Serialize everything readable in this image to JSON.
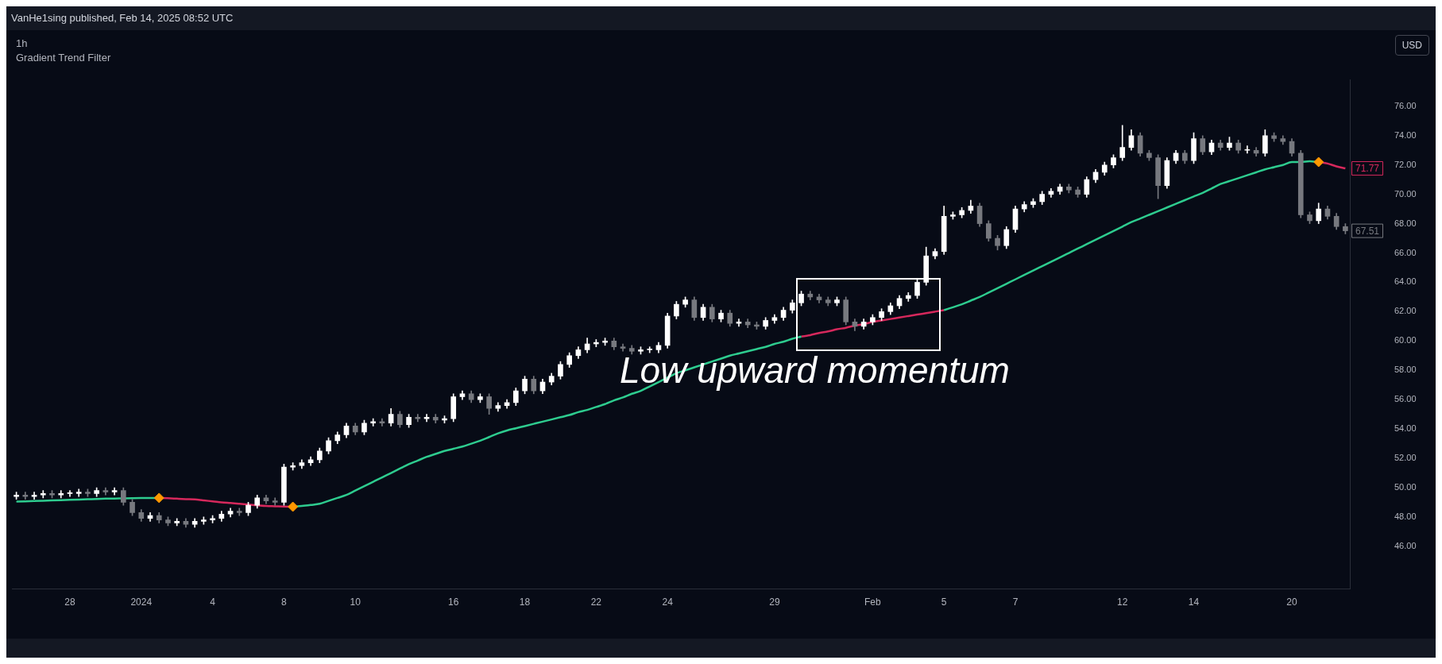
{
  "chart_data": {
    "type": "candlestick",
    "title": "VanHe1sing published, Feb 14, 2025 08:52 UTC",
    "subtitle": "1h",
    "ylabel": "USD",
    "legend": false,
    "grid": false,
    "annotations": [
      "Low upward momentum"
    ],
    "categories": [
      null,
      null,
      null,
      null,
      null,
      null,
      "28",
      null,
      null,
      null,
      null,
      null,
      null,
      null,
      "2024",
      null,
      null,
      null,
      null,
      null,
      null,
      null,
      "4",
      null,
      null,
      null,
      null,
      null,
      null,
      null,
      "8",
      null,
      null,
      null,
      null,
      null,
      null,
      null,
      "10",
      null,
      null,
      null,
      null,
      null,
      null,
      null,
      null,
      null,
      null,
      "16",
      null,
      null,
      null,
      null,
      null,
      null,
      null,
      "18",
      null,
      null,
      null,
      null,
      null,
      null,
      null,
      "22",
      null,
      null,
      null,
      null,
      null,
      null,
      null,
      "24",
      null,
      null,
      null,
      null,
      null,
      null,
      null,
      null,
      null,
      null,
      null,
      "29",
      null,
      null,
      null,
      null,
      null,
      null,
      null,
      null,
      null,
      null,
      "Feb",
      null,
      null,
      null,
      null,
      null,
      null,
      null,
      "5",
      null,
      null,
      null,
      null,
      null,
      null,
      null,
      "7",
      null,
      null,
      null,
      null,
      null,
      null,
      null,
      null,
      null,
      null,
      null,
      "12",
      null,
      null,
      null,
      null,
      null,
      null,
      null,
      "14",
      null,
      null,
      null,
      null,
      null,
      null,
      null,
      null,
      null,
      null,
      "20",
      null,
      null,
      null,
      null,
      null,
      null
    ],
    "ylim": [
      43.1,
      77.8
    ],
    "yticks": [
      {
        "value": 46,
        "label": "46.00"
      },
      {
        "value": 48,
        "label": "48.00"
      },
      {
        "value": 50,
        "label": "50.00"
      },
      {
        "value": 52,
        "label": "52.00"
      },
      {
        "value": 54,
        "label": "54.00"
      },
      {
        "value": 56,
        "label": "56.00"
      },
      {
        "value": 58,
        "label": "58.00"
      },
      {
        "value": 60,
        "label": "60.00"
      },
      {
        "value": 62,
        "label": "62.00"
      },
      {
        "value": 64,
        "label": "64.00"
      },
      {
        "value": 66,
        "label": "66.00"
      },
      {
        "value": 68,
        "label": "68.00"
      },
      {
        "value": 70,
        "label": "70.00"
      },
      {
        "value": 72,
        "label": "72.00"
      },
      {
        "value": 74,
        "label": "74.00"
      },
      {
        "value": 76,
        "label": "76.00"
      }
    ],
    "series": [
      {
        "type": "candlestick",
        "colors": [
          "#ffffff",
          "#77797f",
          "#ffffff",
          "#ffffff",
          "#77797f",
          "#ffffff",
          "#ffffff",
          "#ffffff",
          "#77797f",
          "#ffffff",
          "#77797f",
          "#ffffff",
          "#77797f",
          "#77797f",
          "#77797f",
          "#ffffff",
          "#77797f",
          "#77797f",
          "#ffffff",
          "#77797f",
          "#ffffff",
          "#ffffff",
          "#ffffff",
          "#ffffff",
          "#ffffff",
          "#77797f",
          "#ffffff",
          "#ffffff",
          "#77797f",
          "#77797f",
          "#ffffff",
          "#ffffff",
          "#ffffff",
          "#ffffff",
          "#ffffff",
          "#ffffff",
          "#ffffff",
          "#ffffff",
          "#77797f",
          "#ffffff",
          "#ffffff",
          "#77797f",
          "#ffffff",
          "#77797f",
          "#ffffff",
          "#77797f",
          "#ffffff",
          "#77797f",
          "#ffffff",
          "#ffffff",
          "#ffffff",
          "#77797f",
          "#ffffff",
          "#77797f",
          "#ffffff",
          "#ffffff",
          "#ffffff",
          "#ffffff",
          "#77797f",
          "#ffffff",
          "#ffffff",
          "#ffffff",
          "#ffffff",
          "#ffffff",
          "#ffffff",
          "#ffffff",
          "#ffffff",
          "#77797f",
          "#77797f",
          "#77797f",
          "#ffffff",
          "#ffffff",
          "#ffffff",
          "#ffffff",
          "#ffffff",
          "#ffffff",
          "#77797f",
          "#ffffff",
          "#77797f",
          "#ffffff",
          "#77797f",
          "#ffffff",
          "#77797f",
          "#77797f",
          "#ffffff",
          "#ffffff",
          "#ffffff",
          "#ffffff",
          "#ffffff",
          "#77797f",
          "#77797f",
          "#77797f",
          "#ffffff",
          "#77797f",
          "#77797f",
          "#ffffff",
          "#ffffff",
          "#ffffff",
          "#ffffff",
          "#ffffff",
          "#ffffff",
          "#ffffff",
          "#ffffff",
          "#ffffff",
          "#ffffff",
          "#ffffff",
          "#ffffff",
          "#ffffff",
          "#77797f",
          "#77797f",
          "#77797f",
          "#ffffff",
          "#ffffff",
          "#ffffff",
          "#ffffff",
          "#ffffff",
          "#ffffff",
          "#ffffff",
          "#77797f",
          "#77797f",
          "#ffffff",
          "#ffffff",
          "#ffffff",
          "#ffffff",
          "#ffffff",
          "#ffffff",
          "#77797f",
          "#77797f",
          "#77797f",
          "#ffffff",
          "#ffffff",
          "#77797f",
          "#ffffff",
          "#77797f",
          "#ffffff",
          "#77797f",
          "#ffffff",
          "#77797f",
          "#ffffff",
          "#77797f",
          "#ffffff",
          "#77797f",
          "#77797f",
          "#77797f",
          "#77797f",
          "#77797f",
          "#ffffff",
          "#77797f",
          "#77797f",
          "#77797f"
        ],
        "value_labels": [
          null,
          null,
          null,
          null,
          null,
          null,
          null,
          null,
          null,
          null,
          null,
          null,
          null,
          null,
          null,
          null,
          null,
          null,
          null,
          null,
          null,
          null,
          null,
          null,
          null,
          null,
          null,
          null,
          null,
          null,
          null,
          null,
          null,
          null,
          null,
          null,
          null,
          null,
          null,
          null,
          null,
          null,
          null,
          null,
          null,
          null,
          null,
          null,
          null,
          null,
          null,
          null,
          null,
          null,
          null,
          null,
          null,
          null,
          null,
          null,
          null,
          null,
          null,
          null,
          null,
          null,
          null,
          null,
          null,
          null,
          null,
          null,
          null,
          null,
          null,
          null,
          null,
          null,
          null,
          null,
          null,
          null,
          null,
          null,
          null,
          null,
          null,
          null,
          null,
          null,
          null,
          null,
          null,
          null,
          null,
          null,
          null,
          null,
          null,
          null,
          null,
          null,
          null,
          null,
          null,
          null,
          null,
          null,
          null,
          null,
          null,
          null,
          null,
          null,
          null,
          null,
          null,
          null,
          null,
          null,
          null,
          null,
          null,
          null,
          null,
          null,
          null,
          null,
          null,
          null,
          null,
          null,
          null,
          null,
          null,
          null,
          null,
          null,
          null,
          null,
          null,
          null,
          null,
          null,
          null,
          null,
          null,
          null,
          null,
          "67.51"
        ],
        "ohlc": [
          [
            49.4,
            49.7,
            49.2,
            49.5
          ],
          [
            49.5,
            49.7,
            49.2,
            49.4
          ],
          [
            49.4,
            49.7,
            49.2,
            49.5
          ],
          [
            49.5,
            49.8,
            49.3,
            49.6
          ],
          [
            49.6,
            49.8,
            49.3,
            49.5
          ],
          [
            49.5,
            49.8,
            49.3,
            49.6
          ],
          [
            49.6,
            49.8,
            49.4,
            49.6
          ],
          [
            49.6,
            49.9,
            49.4,
            49.7
          ],
          [
            49.7,
            49.9,
            49.4,
            49.6
          ],
          [
            49.6,
            50.0,
            49.4,
            49.8
          ],
          [
            49.8,
            50.0,
            49.5,
            49.7
          ],
          [
            49.7,
            50.0,
            49.5,
            49.8
          ],
          [
            49.8,
            50.0,
            48.8,
            49.0
          ],
          [
            49.0,
            49.2,
            48.1,
            48.3
          ],
          [
            48.3,
            48.5,
            47.7,
            47.9
          ],
          [
            47.9,
            48.3,
            47.7,
            48.1
          ],
          [
            48.1,
            48.3,
            47.6,
            47.8
          ],
          [
            47.8,
            48.0,
            47.4,
            47.6
          ],
          [
            47.6,
            47.9,
            47.4,
            47.7
          ],
          [
            47.7,
            47.9,
            47.3,
            47.5
          ],
          [
            47.5,
            47.9,
            47.3,
            47.7
          ],
          [
            47.7,
            48.0,
            47.5,
            47.8
          ],
          [
            47.8,
            48.1,
            47.6,
            47.9
          ],
          [
            47.9,
            48.4,
            47.7,
            48.2
          ],
          [
            48.2,
            48.6,
            48.0,
            48.4
          ],
          [
            48.4,
            48.6,
            48.1,
            48.3
          ],
          [
            48.3,
            49.0,
            48.1,
            48.8
          ],
          [
            48.8,
            49.5,
            48.6,
            49.3
          ],
          [
            49.3,
            49.5,
            48.9,
            49.1
          ],
          [
            49.1,
            49.3,
            48.8,
            49.0
          ],
          [
            49.0,
            51.6,
            48.8,
            51.4
          ],
          [
            51.4,
            51.7,
            51.2,
            51.5
          ],
          [
            51.5,
            51.9,
            51.3,
            51.7
          ],
          [
            51.7,
            52.1,
            51.5,
            51.9
          ],
          [
            51.9,
            52.7,
            51.7,
            52.5
          ],
          [
            52.5,
            53.4,
            52.3,
            53.2
          ],
          [
            53.2,
            53.8,
            53.0,
            53.6
          ],
          [
            53.6,
            54.4,
            53.4,
            54.2
          ],
          [
            54.2,
            54.4,
            53.6,
            53.8
          ],
          [
            53.8,
            54.6,
            53.6,
            54.4
          ],
          [
            54.4,
            54.7,
            54.2,
            54.5
          ],
          [
            54.5,
            54.7,
            54.2,
            54.4
          ],
          [
            54.4,
            55.4,
            54.2,
            55.0
          ],
          [
            55.0,
            55.2,
            54.1,
            54.3
          ],
          [
            54.3,
            55.0,
            54.1,
            54.8
          ],
          [
            54.8,
            55.0,
            54.5,
            54.7
          ],
          [
            54.7,
            55.0,
            54.5,
            54.8
          ],
          [
            54.8,
            55.0,
            54.4,
            54.6
          ],
          [
            54.6,
            54.9,
            54.4,
            54.7
          ],
          [
            54.7,
            56.4,
            54.5,
            56.2
          ],
          [
            56.2,
            56.6,
            56.0,
            56.4
          ],
          [
            56.4,
            56.6,
            55.8,
            56.0
          ],
          [
            56.0,
            56.4,
            55.8,
            56.2
          ],
          [
            56.2,
            56.4,
            55.0,
            55.4
          ],
          [
            55.4,
            55.8,
            55.2,
            55.6
          ],
          [
            55.6,
            56.0,
            55.4,
            55.8
          ],
          [
            55.8,
            56.8,
            55.6,
            56.6
          ],
          [
            56.6,
            57.6,
            56.4,
            57.4
          ],
          [
            57.4,
            57.6,
            56.4,
            56.6
          ],
          [
            56.6,
            57.4,
            56.4,
            57.2
          ],
          [
            57.2,
            57.8,
            57.0,
            57.6
          ],
          [
            57.6,
            58.6,
            57.4,
            58.4
          ],
          [
            58.4,
            59.2,
            58.2,
            59.0
          ],
          [
            59.0,
            59.6,
            58.8,
            59.4
          ],
          [
            59.4,
            60.2,
            59.2,
            59.8
          ],
          [
            59.8,
            60.1,
            59.6,
            59.9
          ],
          [
            59.9,
            60.2,
            59.7,
            60.0
          ],
          [
            60.0,
            60.2,
            59.4,
            59.6
          ],
          [
            59.6,
            59.8,
            59.3,
            59.5
          ],
          [
            59.5,
            59.7,
            59.1,
            59.3
          ],
          [
            59.3,
            59.6,
            59.1,
            59.4
          ],
          [
            59.4,
            59.6,
            59.2,
            59.4
          ],
          [
            59.4,
            59.9,
            59.2,
            59.7
          ],
          [
            59.7,
            61.9,
            59.5,
            61.7
          ],
          [
            61.7,
            62.7,
            61.5,
            62.5
          ],
          [
            62.5,
            63.0,
            62.3,
            62.8
          ],
          [
            62.8,
            63.0,
            61.4,
            61.6
          ],
          [
            61.6,
            62.5,
            61.4,
            62.3
          ],
          [
            62.3,
            62.5,
            61.3,
            61.5
          ],
          [
            61.5,
            62.1,
            61.3,
            61.9
          ],
          [
            61.9,
            62.1,
            61.0,
            61.2
          ],
          [
            61.2,
            61.5,
            61.0,
            61.3
          ],
          [
            61.3,
            61.5,
            60.9,
            61.1
          ],
          [
            61.1,
            61.3,
            60.8,
            61.0
          ],
          [
            61.0,
            61.6,
            60.8,
            61.4
          ],
          [
            61.4,
            61.8,
            61.2,
            61.6
          ],
          [
            61.6,
            62.3,
            61.4,
            62.1
          ],
          [
            62.1,
            62.8,
            61.9,
            62.6
          ],
          [
            62.6,
            63.4,
            62.4,
            63.2
          ],
          [
            63.2,
            63.4,
            62.8,
            63.0
          ],
          [
            63.0,
            63.2,
            62.6,
            62.8
          ],
          [
            62.8,
            63.0,
            62.4,
            62.6
          ],
          [
            62.6,
            63.0,
            62.4,
            62.8
          ],
          [
            62.8,
            63.0,
            61.1,
            61.3
          ],
          [
            61.3,
            61.5,
            60.7,
            61.0
          ],
          [
            61.0,
            61.5,
            60.8,
            61.3
          ],
          [
            61.3,
            61.8,
            61.1,
            61.6
          ],
          [
            61.6,
            62.2,
            61.4,
            62.0
          ],
          [
            62.0,
            62.6,
            61.8,
            62.4
          ],
          [
            62.4,
            63.1,
            62.2,
            62.9
          ],
          [
            62.9,
            63.3,
            62.7,
            63.1
          ],
          [
            63.1,
            64.2,
            62.9,
            64.0
          ],
          [
            64.0,
            66.4,
            63.8,
            65.8
          ],
          [
            65.8,
            66.3,
            65.6,
            66.1
          ],
          [
            66.1,
            69.2,
            65.9,
            68.5
          ],
          [
            68.5,
            68.8,
            68.3,
            68.6
          ],
          [
            68.6,
            69.1,
            68.4,
            68.9
          ],
          [
            68.9,
            69.6,
            68.7,
            69.2
          ],
          [
            69.2,
            69.4,
            67.8,
            68.0
          ],
          [
            68.0,
            68.2,
            66.8,
            67.0
          ],
          [
            67.0,
            67.2,
            66.2,
            66.5
          ],
          [
            66.5,
            67.8,
            66.3,
            67.6
          ],
          [
            67.6,
            69.2,
            67.4,
            69.0
          ],
          [
            69.0,
            69.5,
            68.8,
            69.3
          ],
          [
            69.3,
            69.7,
            69.1,
            69.5
          ],
          [
            69.5,
            70.2,
            69.3,
            70.0
          ],
          [
            70.0,
            70.4,
            69.8,
            70.2
          ],
          [
            70.2,
            70.7,
            70.0,
            70.5
          ],
          [
            70.5,
            70.7,
            70.1,
            70.3
          ],
          [
            70.3,
            70.5,
            69.8,
            70.0
          ],
          [
            70.0,
            71.2,
            69.8,
            71.0
          ],
          [
            71.0,
            71.7,
            70.8,
            71.5
          ],
          [
            71.5,
            72.2,
            71.3,
            72.0
          ],
          [
            72.0,
            72.7,
            71.8,
            72.5
          ],
          [
            72.5,
            74.7,
            72.3,
            73.2
          ],
          [
            73.2,
            74.4,
            73.0,
            74.0
          ],
          [
            74.0,
            74.2,
            72.6,
            72.8
          ],
          [
            72.8,
            73.0,
            72.3,
            72.5
          ],
          [
            72.5,
            72.7,
            69.7,
            70.6
          ],
          [
            70.6,
            72.5,
            70.4,
            72.3
          ],
          [
            72.3,
            73.0,
            72.1,
            72.8
          ],
          [
            72.8,
            73.0,
            72.1,
            72.3
          ],
          [
            72.3,
            74.2,
            72.1,
            73.8
          ],
          [
            73.8,
            74.0,
            72.7,
            72.9
          ],
          [
            72.9,
            73.7,
            72.7,
            73.5
          ],
          [
            73.5,
            73.7,
            73.0,
            73.2
          ],
          [
            73.2,
            73.9,
            73.0,
            73.5
          ],
          [
            73.5,
            73.7,
            72.8,
            73.0
          ],
          [
            73.0,
            73.3,
            72.8,
            73.0
          ],
          [
            73.0,
            73.2,
            72.6,
            72.8
          ],
          [
            72.8,
            74.4,
            72.6,
            74.0
          ],
          [
            74.0,
            74.2,
            73.6,
            73.8
          ],
          [
            73.8,
            74.0,
            73.4,
            73.6
          ],
          [
            73.6,
            73.8,
            72.6,
            72.8
          ],
          [
            72.8,
            73.0,
            68.4,
            68.6
          ],
          [
            68.6,
            68.8,
            68.0,
            68.2
          ],
          [
            68.2,
            69.4,
            68.0,
            69.0
          ],
          [
            69.0,
            69.2,
            68.3,
            68.5
          ],
          [
            68.5,
            68.7,
            67.6,
            67.8
          ],
          [
            67.8,
            68.0,
            67.3,
            67.51
          ]
        ]
      },
      {
        "type": "line",
        "name": "Gradient Trend Filter",
        "color": "#2ecc8f",
        "line_style": "solid",
        "marker": "none",
        "values": [
          49.05,
          49.07,
          49.09,
          49.11,
          49.13,
          49.15,
          49.17,
          49.19,
          49.21,
          49.23,
          49.25,
          49.26,
          49.27,
          49.28,
          49.29,
          49.3,
          49.3,
          null,
          null,
          null,
          null,
          null,
          null,
          null,
          null,
          null,
          null,
          null,
          null,
          null,
          null,
          48.7,
          48.75,
          48.82,
          48.9,
          49.1,
          49.3,
          49.5,
          49.8,
          50.1,
          50.4,
          50.7,
          51.0,
          51.3,
          51.6,
          51.85,
          52.1,
          52.3,
          52.5,
          52.65,
          52.8,
          53.0,
          53.2,
          53.45,
          53.7,
          53.9,
          54.05,
          54.2,
          54.35,
          54.5,
          54.65,
          54.8,
          54.95,
          55.15,
          55.3,
          55.5,
          55.7,
          55.95,
          56.15,
          56.4,
          56.6,
          56.9,
          57.2,
          57.5,
          57.8,
          58.0,
          58.2,
          58.4,
          58.6,
          58.8,
          59.0,
          59.15,
          59.3,
          59.45,
          59.6,
          59.8,
          59.95,
          60.15,
          60.3,
          null,
          null,
          null,
          null,
          null,
          null,
          null,
          null,
          null,
          null,
          null,
          null,
          null,
          null,
          null,
          62.1,
          62.3,
          62.5,
          62.75,
          63.0,
          63.3,
          63.6,
          63.9,
          64.2,
          64.5,
          64.8,
          65.1,
          65.4,
          65.7,
          66.0,
          66.3,
          66.6,
          66.9,
          67.2,
          67.5,
          67.8,
          68.1,
          68.35,
          68.6,
          68.85,
          69.1,
          69.35,
          69.6,
          69.85,
          70.1,
          70.4,
          70.7,
          70.9,
          71.1,
          71.3,
          71.5,
          71.7,
          71.85,
          72.0,
          72.2,
          72.2,
          72.25,
          72.2,
          null,
          null,
          null
        ]
      },
      {
        "type": "line",
        "color": "#d6285c",
        "line_style": "solid",
        "marker": "none",
        "values": [
          null,
          null,
          null,
          null,
          null,
          null,
          null,
          null,
          null,
          null,
          null,
          null,
          null,
          null,
          null,
          null,
          49.3,
          49.28,
          49.25,
          49.22,
          49.2,
          49.13,
          49.07,
          49.0,
          48.95,
          48.9,
          48.85,
          48.8,
          48.75,
          48.73,
          48.71,
          48.7,
          null,
          null,
          null,
          null,
          null,
          null,
          null,
          null,
          null,
          null,
          null,
          null,
          null,
          null,
          null,
          null,
          null,
          null,
          null,
          null,
          null,
          null,
          null,
          null,
          null,
          null,
          null,
          null,
          null,
          null,
          null,
          null,
          null,
          null,
          null,
          null,
          null,
          null,
          null,
          null,
          null,
          null,
          null,
          null,
          null,
          null,
          null,
          null,
          null,
          null,
          null,
          null,
          null,
          null,
          null,
          null,
          60.3,
          60.4,
          60.55,
          60.65,
          60.8,
          60.9,
          61.05,
          61.15,
          61.3,
          61.4,
          61.5,
          61.6,
          61.7,
          61.8,
          61.9,
          62.0,
          62.1,
          null,
          null,
          null,
          null,
          null,
          null,
          null,
          null,
          null,
          null,
          null,
          null,
          null,
          null,
          null,
          null,
          null,
          null,
          null,
          null,
          null,
          null,
          null,
          null,
          null,
          null,
          null,
          null,
          null,
          null,
          null,
          null,
          null,
          null,
          null,
          null,
          null,
          null,
          null,
          null,
          null,
          72.2,
          72.1,
          71.9,
          71.77
        ],
        "value_labels": [
          null,
          null,
          null,
          null,
          null,
          null,
          null,
          null,
          null,
          null,
          null,
          null,
          null,
          null,
          null,
          null,
          null,
          null,
          null,
          null,
          null,
          null,
          null,
          null,
          null,
          null,
          null,
          null,
          null,
          null,
          null,
          null,
          null,
          null,
          null,
          null,
          null,
          null,
          null,
          null,
          null,
          null,
          null,
          null,
          null,
          null,
          null,
          null,
          null,
          null,
          null,
          null,
          null,
          null,
          null,
          null,
          null,
          null,
          null,
          null,
          null,
          null,
          null,
          null,
          null,
          null,
          null,
          null,
          null,
          null,
          null,
          null,
          null,
          null,
          null,
          null,
          null,
          null,
          null,
          null,
          null,
          null,
          null,
          null,
          null,
          null,
          null,
          null,
          null,
          null,
          null,
          null,
          null,
          null,
          null,
          null,
          null,
          null,
          null,
          null,
          null,
          null,
          null,
          null,
          null,
          null,
          null,
          null,
          null,
          null,
          null,
          null,
          null,
          null,
          null,
          null,
          null,
          null,
          null,
          null,
          null,
          null,
          null,
          null,
          null,
          null,
          null,
          null,
          null,
          null,
          null,
          null,
          null,
          null,
          null,
          null,
          null,
          null,
          null,
          null,
          null,
          null,
          null,
          null,
          null,
          null,
          null,
          null,
          null,
          "71.77"
        ]
      },
      {
        "type": "scatter",
        "marker": "diamond",
        "color": "#ff9800",
        "values": [
          null,
          null,
          null,
          null,
          null,
          null,
          null,
          null,
          null,
          null,
          null,
          null,
          null,
          null,
          null,
          null,
          49.3,
          null,
          null,
          null,
          null,
          null,
          null,
          null,
          null,
          null,
          null,
          null,
          null,
          null,
          null,
          48.7,
          null,
          null,
          null,
          null,
          null,
          null,
          null,
          null,
          null,
          null,
          null,
          null,
          null,
          null,
          null,
          null,
          null,
          null,
          null,
          null,
          null,
          null,
          null,
          null,
          null,
          null,
          null,
          null,
          null,
          null,
          null,
          null,
          null,
          null,
          null,
          null,
          null,
          null,
          null,
          null,
          null,
          null,
          null,
          null,
          null,
          null,
          null,
          null,
          null,
          null,
          null,
          null,
          null,
          null,
          null,
          null,
          null,
          null,
          null,
          null,
          null,
          null,
          null,
          null,
          null,
          null,
          null,
          null,
          null,
          null,
          null,
          null,
          null,
          null,
          null,
          null,
          null,
          null,
          null,
          null,
          null,
          null,
          null,
          null,
          null,
          null,
          null,
          null,
          null,
          null,
          null,
          null,
          null,
          null,
          null,
          null,
          null,
          null,
          null,
          null,
          null,
          null,
          null,
          null,
          null,
          null,
          null,
          null,
          null,
          null,
          null,
          null,
          null,
          null,
          72.2,
          null,
          null,
          null
        ]
      }
    ]
  }
}
